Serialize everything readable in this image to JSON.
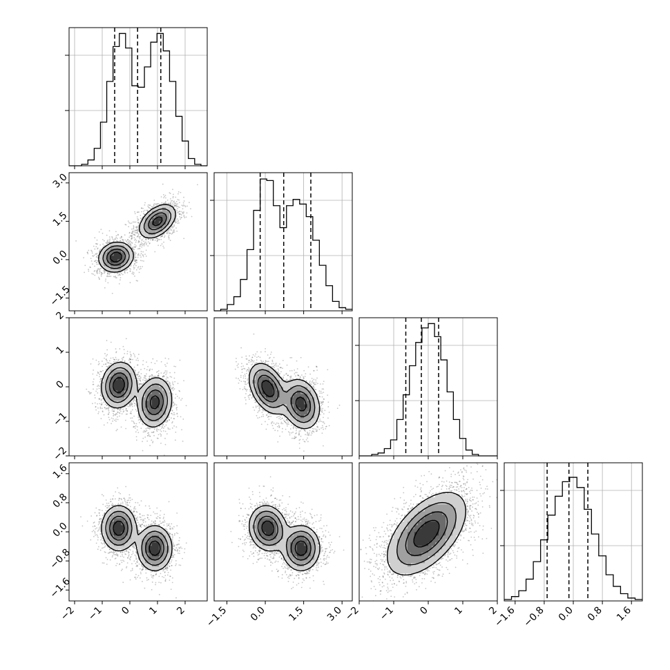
{
  "chart_data": {
    "type": "corner",
    "parameters": 4,
    "quantiles": [
      0.16,
      0.5,
      0.84
    ],
    "axes": [
      {
        "range": [
          -2.2,
          2.8
        ],
        "ticks": [
          "−2",
          "−1",
          "0",
          "1",
          "2"
        ],
        "tick_values": [
          -2,
          -1,
          0,
          1,
          2
        ]
      },
      {
        "range": [
          -2.0,
          3.4
        ],
        "ticks": [
          "−1.5",
          "0.0",
          "1.5",
          "3.0"
        ],
        "tick_values": [
          -1.5,
          0.0,
          1.5,
          3.0
        ]
      },
      {
        "range": [
          -2.0,
          2.0
        ],
        "ticks": [
          "−2",
          "−1",
          "0",
          "1",
          "2"
        ],
        "tick_values": [
          -2,
          -1,
          0,
          1,
          2
        ]
      },
      {
        "range": [
          -1.9,
          1.9
        ],
        "ticks": [
          "−1.6",
          "−0.8",
          "0.0",
          "0.8",
          "1.6"
        ],
        "tick_values": [
          -1.6,
          -0.8,
          0.0,
          0.8,
          1.6
        ]
      }
    ],
    "histograms": [
      {
        "param": 0,
        "bin_range": [
          -2.2,
          2.8
        ],
        "counts": [
          0,
          0,
          1,
          4,
          12,
          30,
          58,
          82,
          91,
          81,
          55,
          54,
          68,
          85,
          91,
          79,
          58,
          34,
          17,
          5,
          1,
          0
        ],
        "max": 95,
        "q_lines": [
          -0.55,
          0.28,
          1.12
        ]
      },
      {
        "param": 1,
        "bin_range": [
          -2.0,
          3.4
        ],
        "counts": [
          0,
          1,
          4,
          9,
          20,
          39,
          64,
          84,
          83,
          67,
          53,
          67,
          71,
          68,
          60,
          45,
          29,
          16,
          6,
          2,
          1
        ],
        "max": 88,
        "q_lines": [
          -0.2,
          0.72,
          1.78
        ]
      },
      {
        "param": 2,
        "bin_range": [
          -2.0,
          2.0
        ],
        "counts": [
          0,
          0,
          1,
          2,
          5,
          11,
          25,
          42,
          62,
          78,
          88,
          91,
          82,
          66,
          44,
          25,
          12,
          4,
          1,
          0,
          0,
          0
        ],
        "max": 95,
        "q_lines": [
          -0.65,
          -0.2,
          0.3
        ]
      },
      {
        "param": 3,
        "bin_range": [
          -1.9,
          1.9
        ],
        "counts": [
          1,
          3,
          7,
          15,
          27,
          42,
          59,
          72,
          82,
          85,
          78,
          63,
          46,
          31,
          18,
          10,
          5,
          2,
          1
        ],
        "max": 95,
        "q_lines": [
          -0.72,
          -0.12,
          0.4
        ]
      }
    ],
    "density_panels": [
      {
        "x": 0,
        "y": 1,
        "components": [
          [
            -0.5,
            0.1,
            0.3,
            0.28,
            0.5
          ],
          [
            1.0,
            1.5,
            0.32,
            0.32,
            0.5
          ]
        ],
        "rho": [
          0.1,
          0.45
        ]
      },
      {
        "x": 0,
        "y": 2,
        "components": [
          [
            -0.4,
            0.05,
            0.3,
            0.32,
            0.5
          ],
          [
            0.9,
            -0.45,
            0.3,
            0.35,
            0.5
          ]
        ],
        "rho": [
          0.1,
          0.1
        ]
      },
      {
        "x": 1,
        "y": 2,
        "components": [
          [
            0.1,
            -0.05,
            0.35,
            0.35,
            0.5
          ],
          [
            1.4,
            -0.5,
            0.35,
            0.35,
            0.5
          ]
        ],
        "rho": [
          -0.4,
          -0.2
        ]
      },
      {
        "x": 0,
        "y": 3,
        "components": [
          [
            -0.4,
            0.1,
            0.3,
            0.3,
            0.5
          ],
          [
            0.9,
            -0.45,
            0.3,
            0.3,
            0.5
          ]
        ],
        "rho": [
          0.0,
          0.0
        ]
      },
      {
        "x": 1,
        "y": 3,
        "components": [
          [
            0.1,
            0.1,
            0.35,
            0.3,
            0.5
          ],
          [
            1.4,
            -0.45,
            0.35,
            0.3,
            0.5
          ]
        ],
        "rho": [
          -0.1,
          0.0
        ]
      },
      {
        "x": 2,
        "y": 3,
        "components": [
          [
            -0.05,
            -0.05,
            0.55,
            0.55,
            1.0
          ]
        ],
        "rho": [
          0.55
        ]
      }
    ],
    "colors": {
      "line": "#000000",
      "grid": "#b0b0b0",
      "scatter": "#555555",
      "density": "#000000"
    }
  }
}
